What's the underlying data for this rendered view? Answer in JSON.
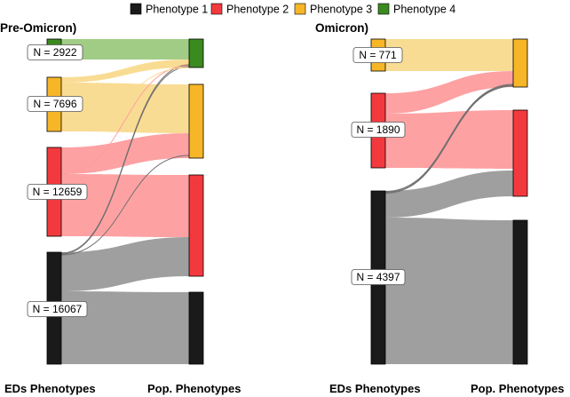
{
  "legend": [
    {
      "label": "Phenotype 1",
      "color": "#1a1a1a"
    },
    {
      "label": "Phenotype 2",
      "color": "#f23a3e"
    },
    {
      "label": "Phenotype 3",
      "color": "#f6b628"
    },
    {
      "label": "Phenotype 4",
      "color": "#3b8a1f"
    }
  ],
  "link_colors": {
    "phenotype-1": "#9a9a9a",
    "phenotype-2": "#fd9c9e",
    "phenotype-3": "#f9da8d",
    "phenotype-4": "#9cc97e"
  },
  "panels": [
    {
      "title": "Pre-Omicron)",
      "axis_left": "EDs Phenotypes",
      "axis_right": "Pop. Phenotypes",
      "nodes_left": [
        {
          "phenotype": 4,
          "n_label": "N = 2922",
          "n": 2922
        },
        {
          "phenotype": 3,
          "n_label": "N = 7696",
          "n": 7696
        },
        {
          "phenotype": 2,
          "n_label": "N = 12659",
          "n": 12659
        },
        {
          "phenotype": 1,
          "n_label": "N = 16067",
          "n": 16067
        }
      ]
    },
    {
      "title": "Omicron)",
      "axis_left": "EDs Phenotypes",
      "axis_right": "Pop. Phenotypes",
      "nodes_left": [
        {
          "phenotype": 3,
          "n_label": "N = 771",
          "n": 771
        },
        {
          "phenotype": 2,
          "n_label": "N = 1890",
          "n": 1890
        },
        {
          "phenotype": 1,
          "n_label": "N = 4397",
          "n": 4397
        }
      ]
    }
  ]
}
